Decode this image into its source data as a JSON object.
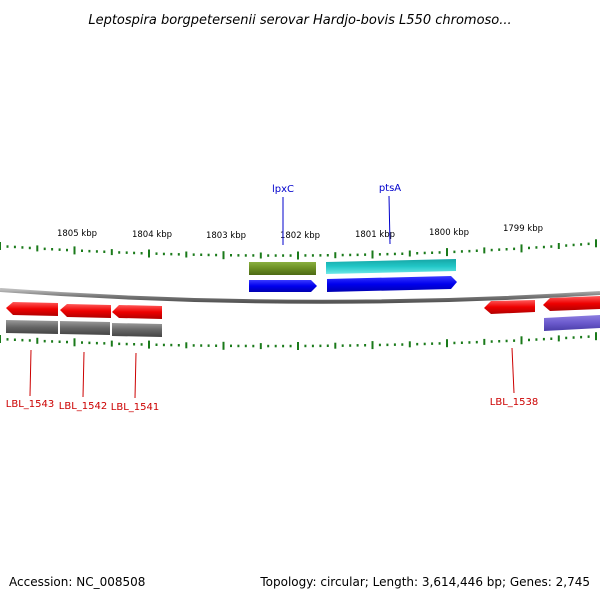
{
  "title": "Leptospira borgpetersenii serovar Hardjo-bovis L550 chromoso...",
  "accession": "Accession: NC_008508",
  "summary": "Topology: circular; Length: 3,614,446 bp; Genes: 2,745",
  "tick_labels": [
    "1805 kbp",
    "1804 kbp",
    "1803 kbp",
    "1802 kbp",
    "1801 kbp",
    "1800 kbp",
    "1799 kbp"
  ],
  "genes_top": [
    {
      "name": "lpxC",
      "color": "#0000cc"
    },
    {
      "name": "ptsA",
      "color": "#0000cc"
    }
  ],
  "genes_bottom": [
    {
      "name": "LBL_1543",
      "color": "#cc0000"
    },
    {
      "name": "LBL_1542",
      "color": "#cc0000"
    },
    {
      "name": "LBL_1541",
      "color": "#cc0000"
    },
    {
      "name": "LBL_1538",
      "color": "#cc0000"
    }
  ],
  "colors": {
    "tick": "#1a7a1a",
    "backbone": "#7a7a7a",
    "cds_forward_olive": "#6b8e23",
    "cds_forward_cyan": "#22c7c7",
    "cds_blue": "#0000ee",
    "cds_red": "#ee0000",
    "cds_gray": "#666666",
    "cds_purple": "#6b5acd"
  }
}
